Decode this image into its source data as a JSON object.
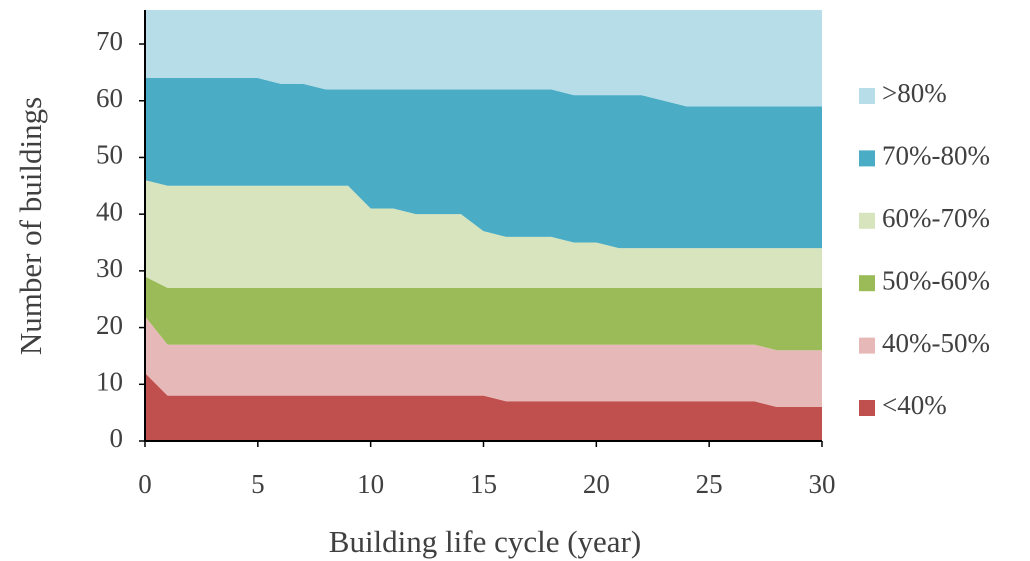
{
  "chart_data": {
    "type": "stacked_area",
    "x_label": "Building life cycle (year)",
    "y_label": "Number of buildings",
    "x": [
      0,
      1,
      2,
      3,
      4,
      5,
      6,
      7,
      8,
      9,
      10,
      11,
      12,
      13,
      14,
      15,
      16,
      17,
      18,
      19,
      20,
      21,
      22,
      23,
      24,
      25,
      26,
      27,
      28,
      29,
      30
    ],
    "xlim": [
      0,
      30
    ],
    "xticks": [
      0,
      5,
      10,
      15,
      20,
      25,
      30
    ],
    "ylim": [
      0,
      76
    ],
    "yticks": [
      0,
      10,
      20,
      30,
      40,
      50,
      60,
      70
    ],
    "series": [
      {
        "name": "<40%",
        "color": "#c0504d",
        "values": [
          12,
          8,
          8,
          8,
          8,
          8,
          8,
          8,
          8,
          8,
          8,
          8,
          8,
          8,
          8,
          8,
          7,
          7,
          7,
          7,
          7,
          7,
          7,
          7,
          7,
          7,
          7,
          7,
          6,
          6,
          6
        ]
      },
      {
        "name": "40%-50%",
        "color": "#e6b9b8",
        "values": [
          10,
          9,
          9,
          9,
          9,
          9,
          9,
          9,
          9,
          9,
          9,
          9,
          9,
          9,
          9,
          9,
          10,
          10,
          10,
          10,
          10,
          10,
          10,
          10,
          10,
          10,
          10,
          10,
          10,
          10,
          10
        ]
      },
      {
        "name": "50%-60%",
        "color": "#9bbb59",
        "values": [
          7,
          10,
          10,
          10,
          10,
          10,
          10,
          10,
          10,
          10,
          10,
          10,
          10,
          10,
          10,
          10,
          10,
          10,
          10,
          10,
          10,
          10,
          10,
          10,
          10,
          10,
          10,
          10,
          11,
          11,
          11
        ]
      },
      {
        "name": "60%-70%",
        "color": "#d7e4bd",
        "values": [
          17,
          18,
          18,
          18,
          18,
          18,
          18,
          18,
          18,
          18,
          14,
          14,
          13,
          13,
          13,
          10,
          9,
          9,
          9,
          8,
          8,
          7,
          7,
          7,
          7,
          7,
          7,
          7,
          7,
          7,
          7
        ]
      },
      {
        "name": "70%-80%",
        "color": "#4bacc6",
        "values": [
          18,
          19,
          19,
          19,
          19,
          19,
          18,
          18,
          17,
          17,
          21,
          21,
          22,
          22,
          22,
          25,
          26,
          26,
          26,
          26,
          26,
          27,
          27,
          26,
          25,
          25,
          25,
          25,
          25,
          25,
          25
        ]
      },
      {
        "name": ">80%",
        "color": "#b7dee8",
        "values": [
          12,
          12,
          12,
          12,
          12,
          12,
          13,
          13,
          14,
          14,
          14,
          14,
          14,
          14,
          14,
          14,
          14,
          14,
          14,
          15,
          15,
          15,
          15,
          16,
          17,
          17,
          17,
          17,
          17,
          17,
          17
        ]
      }
    ]
  }
}
